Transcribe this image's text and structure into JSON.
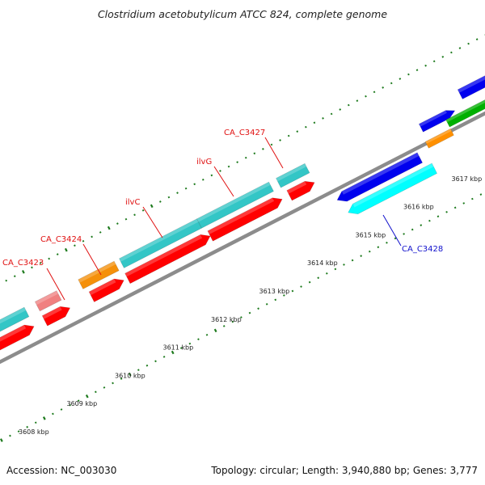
{
  "title": "Clostridium acetobutylicum ATCC 824, complete genome",
  "footer": {
    "accession": "Accession: NC_003030",
    "topology": "Topology: circular; Length: 3,940,880 bp; Genes: 3,777"
  },
  "colors": {
    "backbone": "#8c8c8c",
    "tick": "#1d7a1d",
    "label_red": "#e01010",
    "label_blue": "#1010cc"
  },
  "ticks": [
    {
      "label": "3608 kbp"
    },
    {
      "label": "3609 kbp"
    },
    {
      "label": "3610 kbp"
    },
    {
      "label": "3611 kbp"
    },
    {
      "label": "3612 kbp"
    },
    {
      "label": "3613 kbp"
    },
    {
      "label": "3614 kbp"
    },
    {
      "label": "3615 kbp"
    },
    {
      "label": "3616 kbp"
    },
    {
      "label": "3617 kbp"
    }
  ],
  "gene_labels": [
    {
      "name": "CA_C3423",
      "color": "red"
    },
    {
      "name": "CA_C3424",
      "color": "red"
    },
    {
      "name": "ilvC",
      "color": "red"
    },
    {
      "name": "ilvG",
      "color": "red"
    },
    {
      "name": "CA_C3427",
      "color": "red"
    },
    {
      "name": "CA_C3428",
      "color": "blue"
    }
  ]
}
